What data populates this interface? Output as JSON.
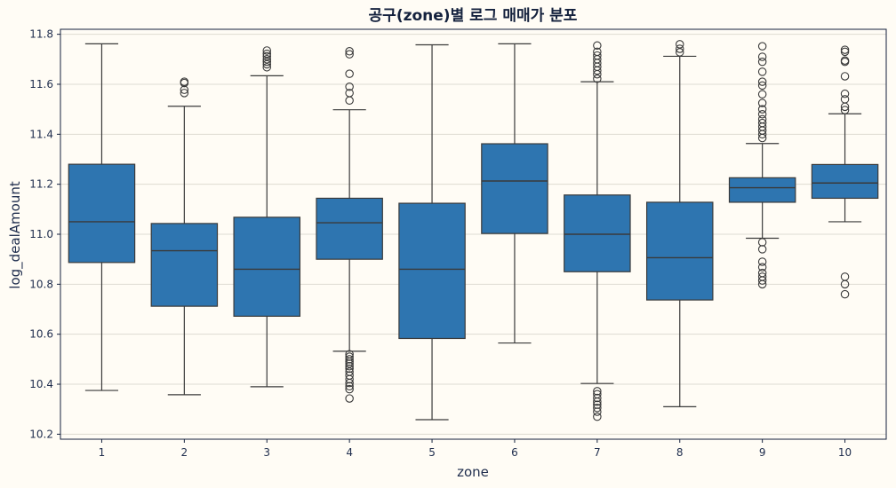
{
  "chart_data": {
    "type": "boxplot",
    "title": "공구(zone)별 로그 매매가 분포",
    "xlabel": "zone",
    "ylabel": "log_dealAmount",
    "ylim": [
      10.18,
      11.82
    ],
    "y_ticks": [
      "10.2",
      "10.4",
      "10.6",
      "10.8",
      "11.0",
      "11.2",
      "11.4",
      "11.6",
      "11.8"
    ],
    "grid": "horizontal",
    "box_color": "#2e75b0",
    "line_color": "#3a3a3a",
    "background": "#fffcf5",
    "categories": [
      "1",
      "2",
      "3",
      "4",
      "5",
      "6",
      "7",
      "8",
      "9",
      "10"
    ],
    "boxes": [
      {
        "zone": "1",
        "whisker_low": 10.375,
        "q1": 10.887,
        "median": 11.05,
        "q3": 11.28,
        "whisker_high": 11.762,
        "outliers": []
      },
      {
        "zone": "2",
        "whisker_low": 10.358,
        "q1": 10.712,
        "median": 10.934,
        "q3": 11.043,
        "whisker_high": 11.512,
        "outliers": [
          11.565,
          11.578,
          11.605,
          11.61
        ]
      },
      {
        "zone": "3",
        "whisker_low": 10.39,
        "q1": 10.672,
        "median": 10.86,
        "q3": 11.068,
        "whisker_high": 11.634,
        "outliers": [
          11.668,
          11.68,
          11.69,
          11.7,
          11.712,
          11.722,
          11.735
        ]
      },
      {
        "zone": "4",
        "whisker_low": 10.532,
        "q1": 10.9,
        "median": 11.046,
        "q3": 11.144,
        "whisker_high": 11.498,
        "outliers": [
          10.343,
          10.38,
          10.392,
          10.405,
          10.42,
          10.435,
          10.45,
          10.462,
          10.472,
          10.482,
          10.49,
          10.5,
          10.51,
          10.52,
          11.535,
          11.565,
          11.59,
          11.642,
          11.72,
          11.732
        ]
      },
      {
        "zone": "5",
        "whisker_low": 10.258,
        "q1": 10.583,
        "median": 10.86,
        "q3": 11.124,
        "whisker_high": 11.758,
        "outliers": []
      },
      {
        "zone": "6",
        "whisker_low": 10.565,
        "q1": 11.003,
        "median": 11.213,
        "q3": 11.362,
        "whisker_high": 11.762,
        "outliers": []
      },
      {
        "zone": "7",
        "whisker_low": 10.403,
        "q1": 10.85,
        "median": 11.0,
        "q3": 11.157,
        "whisker_high": 11.61,
        "outliers": [
          10.27,
          10.29,
          10.305,
          10.318,
          10.33,
          10.345,
          10.36,
          10.372,
          11.622,
          11.64,
          11.655,
          11.67,
          11.685,
          11.7,
          11.715,
          11.73,
          11.755
        ]
      },
      {
        "zone": "8",
        "whisker_low": 10.31,
        "q1": 10.737,
        "median": 10.906,
        "q3": 11.128,
        "whisker_high": 11.712,
        "outliers": [
          11.728,
          11.742,
          11.76
        ]
      },
      {
        "zone": "9",
        "whisker_low": 10.984,
        "q1": 11.128,
        "median": 11.186,
        "q3": 11.226,
        "whisker_high": 11.363,
        "outliers": [
          10.8,
          10.815,
          10.83,
          10.845,
          10.868,
          10.89,
          10.94,
          10.968,
          11.385,
          11.4,
          11.415,
          11.43,
          11.445,
          11.46,
          11.48,
          11.5,
          11.525,
          11.56,
          11.595,
          11.61,
          11.65,
          11.69,
          11.71,
          11.752
        ]
      },
      {
        "zone": "10",
        "whisker_low": 11.05,
        "q1": 11.144,
        "median": 11.205,
        "q3": 11.279,
        "whisker_high": 11.482,
        "outliers": [
          10.76,
          10.8,
          10.83,
          11.497,
          11.51,
          11.54,
          11.562,
          11.632,
          11.69,
          11.695,
          11.73,
          11.738
        ]
      }
    ]
  }
}
